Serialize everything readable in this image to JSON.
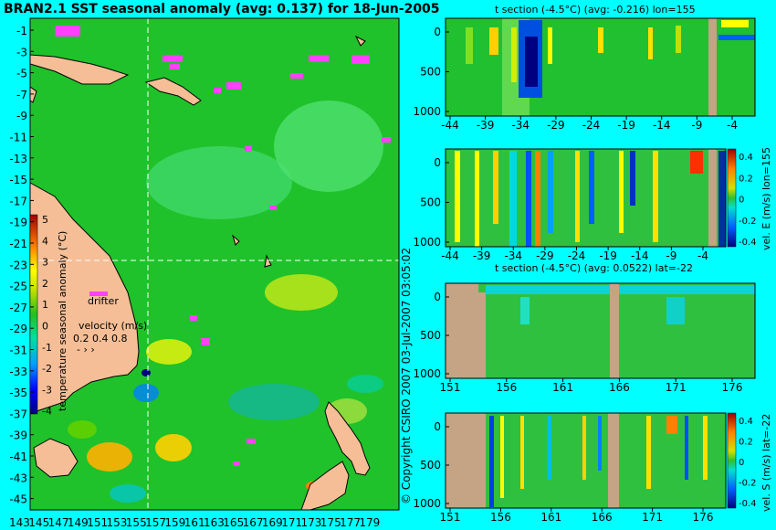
{
  "main_title": "BRAN2.1 SST seasonal anomaly (avg: 0.137) for 18-Jun-2005",
  "copyright": "© Copyright CSIRO 2007   03-Jul-2007 03:05:02",
  "map": {
    "yticks": [
      "-1",
      "-3",
      "-5",
      "-7",
      "-9",
      "-11",
      "-13",
      "-15",
      "-17",
      "-19",
      "-21",
      "-23",
      "-25",
      "-27",
      "-29",
      "-31",
      "-33",
      "-35",
      "-37",
      "-39",
      "-41",
      "-43",
      "-45"
    ],
    "xticks": [
      "143",
      "145",
      "147",
      "149",
      "151",
      "153",
      "155",
      "157",
      "159",
      "161",
      "163",
      "165",
      "167",
      "169",
      "171",
      "173",
      "175",
      "177",
      "179"
    ],
    "colorbar_label": "temperature seasonal anomaly (°C)",
    "colorbar_ticks": [
      "5",
      "4",
      "3",
      "2",
      "1",
      "0",
      "-1",
      "-2",
      "-3",
      "-4"
    ],
    "drifter_label": "drifter",
    "velocity_label": "velocity (m/s)",
    "velocity_ticks": "0.2 0.4 0.8"
  },
  "panels": [
    {
      "title": "t section (-4.5°C) (avg: -0.216) lon=155",
      "xticks": [
        "-44",
        "-39",
        "-34",
        "-29",
        "-24",
        "-19",
        "-14",
        "-9",
        "-4"
      ],
      "yticks": [
        "0",
        "500",
        "1000"
      ],
      "cb_label": "",
      "cb_ticks": []
    },
    {
      "title": "",
      "xticks": [
        "-44",
        "-39",
        "-34",
        "-29",
        "-24",
        "-19",
        "-14",
        "-9",
        "-4"
      ],
      "yticks": [
        "0",
        "500",
        "1000"
      ],
      "cb_label": "vel. E (m/s) lon=155",
      "cb_ticks": [
        "0.4",
        "0.2",
        "0",
        "-0.2",
        "-0.4"
      ]
    },
    {
      "title": "t section (-4.5°C) (avg: 0.0522) lat=-22",
      "xticks": [
        "151",
        "156",
        "161",
        "166",
        "171",
        "176"
      ],
      "yticks": [
        "0",
        "500",
        "1000"
      ],
      "cb_label": "",
      "cb_ticks": []
    },
    {
      "title": "",
      "xticks": [
        "151",
        "156",
        "161",
        "166",
        "171",
        "176"
      ],
      "yticks": [
        "0",
        "500",
        "1000"
      ],
      "cb_label": "vel. S (m/s) lat=-22",
      "cb_ticks": [
        "0.4",
        "0.2",
        "0",
        "-0.2",
        "-0.4"
      ]
    }
  ],
  "chart_data": [
    {
      "type": "heatmap",
      "title": "BRAN2.1 SST seasonal anomaly (avg: 0.137) for 18-Jun-2005",
      "xlabel": "",
      "ylabel": "",
      "xlim": [
        143,
        180
      ],
      "ylim": [
        -45,
        0
      ],
      "colorbar": {
        "label": "temperature seasonal anomaly (°C)",
        "range": [
          -4,
          5
        ]
      },
      "crosshair": {
        "lon": 155,
        "lat": -22
      },
      "avg": 0.137
    },
    {
      "type": "heatmap",
      "title": "t section (-4.5°C) (avg: -0.216) lon=155",
      "xlim": [
        -45,
        0
      ],
      "ylim": [
        1050,
        0
      ],
      "avg": -0.216
    },
    {
      "type": "heatmap",
      "title": "",
      "xlim": [
        -45,
        0
      ],
      "ylim": [
        1050,
        0
      ],
      "colorbar": {
        "label": "vel. E (m/s) lon=155",
        "range": [
          -0.4,
          0.4
        ]
      }
    },
    {
      "type": "heatmap",
      "title": "t section (-4.5°C) (avg: 0.0522) lat=-22",
      "xlim": [
        150,
        180
      ],
      "ylim": [
        1050,
        0
      ],
      "avg": 0.0522
    },
    {
      "type": "heatmap",
      "title": "",
      "xlim": [
        150,
        180
      ],
      "ylim": [
        1050,
        0
      ],
      "colorbar": {
        "label": "vel. S (m/s) lat=-22",
        "range": [
          -0.4,
          0.4
        ]
      }
    }
  ]
}
